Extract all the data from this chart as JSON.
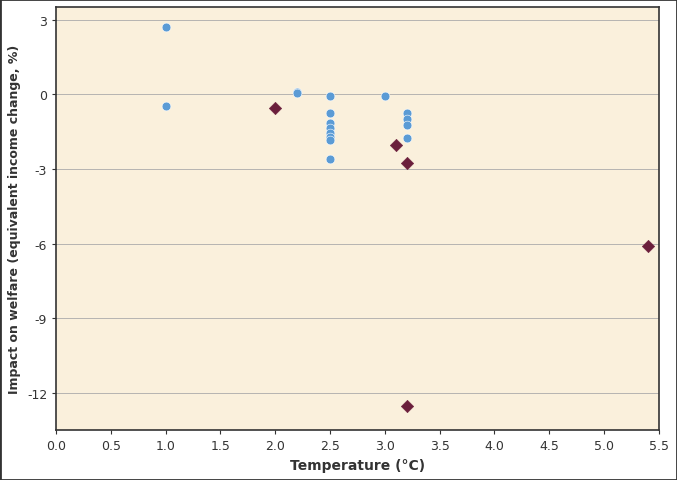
{
  "title": "",
  "xlabel": "Temperature (°C)",
  "ylabel": "Impact on welfare (equivalent income change, %)",
  "xlim": [
    0.0,
    5.5
  ],
  "ylim": [
    -13.5,
    3.5
  ],
  "xticks": [
    0.0,
    0.5,
    1.0,
    1.5,
    2.0,
    2.5,
    3.0,
    3.5,
    4.0,
    4.5,
    5.0,
    5.5
  ],
  "yticks": [
    3,
    0,
    -3,
    -6,
    -9,
    -12
  ],
  "plot_bg_color": "#FAF0DC",
  "fig_bg_color": "#FFFFFF",
  "grid_color": "#AAAAAA",
  "blue_circles": [
    [
      1.0,
      2.7
    ],
    [
      1.0,
      -0.45
    ],
    [
      2.2,
      0.1
    ],
    [
      2.2,
      0.05
    ],
    [
      2.5,
      -0.05
    ],
    [
      2.5,
      -0.75
    ],
    [
      2.5,
      -1.15
    ],
    [
      2.5,
      -1.35
    ],
    [
      2.5,
      -1.55
    ],
    [
      2.5,
      -1.7
    ],
    [
      2.5,
      -1.85
    ],
    [
      2.5,
      -2.6
    ],
    [
      3.0,
      -0.05
    ],
    [
      3.2,
      -0.75
    ],
    [
      3.2,
      -1.0
    ],
    [
      3.2,
      -1.25
    ],
    [
      3.2,
      -1.75
    ]
  ],
  "purple_diamonds": [
    [
      2.0,
      -0.55
    ],
    [
      3.1,
      -2.05
    ],
    [
      3.2,
      -2.75
    ],
    [
      3.2,
      -12.55
    ],
    [
      5.4,
      -6.1
    ]
  ],
  "circle_color": "#5B9BD5",
  "diamond_color": "#6B1F3C",
  "circle_size": 40,
  "diamond_size": 40,
  "border_color": "#333333",
  "tick_color": "#333333",
  "label_color": "#333333"
}
